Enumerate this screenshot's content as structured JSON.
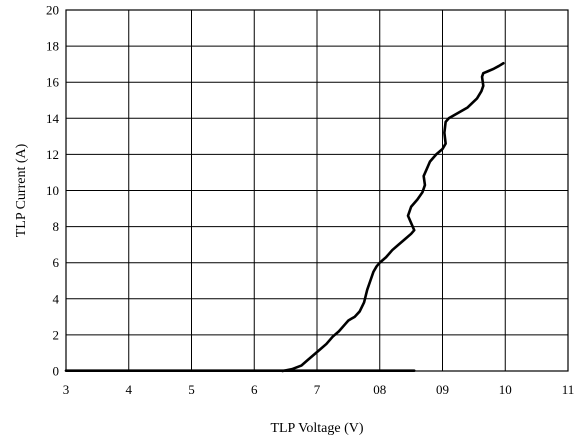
{
  "chart_data": {
    "type": "line",
    "title": "",
    "xlabel": "TLP Voltage (V)",
    "ylabel": "TLP Current (A)",
    "xlim": [
      3,
      11
    ],
    "ylim": [
      0,
      20
    ],
    "grid": true,
    "legend": "none",
    "x_ticks": [
      {
        "value": 3,
        "label": "3"
      },
      {
        "value": 4,
        "label": "4"
      },
      {
        "value": 5,
        "label": "5"
      },
      {
        "value": 6,
        "label": "6"
      },
      {
        "value": 7,
        "label": "7"
      },
      {
        "value": 8,
        "label": "08"
      },
      {
        "value": 9,
        "label": "09"
      },
      {
        "value": 10,
        "label": "10"
      },
      {
        "value": 11,
        "label": "11"
      }
    ],
    "y_ticks": [
      {
        "value": 0,
        "label": "0"
      },
      {
        "value": 2,
        "label": "2"
      },
      {
        "value": 4,
        "label": "4"
      },
      {
        "value": 6,
        "label": "6"
      },
      {
        "value": 8,
        "label": "8"
      },
      {
        "value": 10,
        "label": "10"
      },
      {
        "value": 12,
        "label": "12"
      },
      {
        "value": 14,
        "label": "14"
      },
      {
        "value": 16,
        "label": "16"
      },
      {
        "value": 18,
        "label": "18"
      },
      {
        "value": 20,
        "label": "20"
      }
    ],
    "series": [
      {
        "x": [
          8.55,
          6.0,
          5.0,
          4.0,
          3.0
        ],
        "y": [
          0.02,
          0.02,
          0.02,
          0.02,
          0.02
        ]
      },
      {
        "x": [
          6.45,
          6.6,
          6.75,
          6.85,
          6.95,
          7.05,
          7.15,
          7.25,
          7.35,
          7.45,
          7.5,
          7.55,
          7.6,
          7.68,
          7.75,
          7.8,
          7.85,
          7.9,
          7.95,
          8.0,
          8.1,
          8.2,
          8.3,
          8.4,
          8.5,
          8.55,
          8.5,
          8.45,
          8.5,
          8.6,
          8.68,
          8.72,
          8.7,
          8.75,
          8.8,
          8.9,
          9.0,
          9.05,
          9.03,
          9.05,
          9.1,
          9.25,
          9.4,
          9.55,
          9.62,
          9.65,
          9.63,
          9.65,
          9.72,
          9.82,
          9.9,
          9.97
        ],
        "y": [
          0.0,
          0.1,
          0.3,
          0.6,
          0.9,
          1.2,
          1.5,
          1.9,
          2.2,
          2.6,
          2.8,
          2.9,
          3.0,
          3.3,
          3.8,
          4.5,
          5.0,
          5.5,
          5.8,
          6.0,
          6.3,
          6.7,
          7.0,
          7.3,
          7.6,
          7.8,
          8.2,
          8.6,
          9.1,
          9.5,
          9.9,
          10.3,
          10.8,
          11.2,
          11.6,
          12.0,
          12.3,
          12.6,
          13.2,
          13.8,
          14.0,
          14.3,
          14.6,
          15.1,
          15.5,
          15.8,
          16.3,
          16.5,
          16.6,
          16.75,
          16.9,
          17.05
        ]
      }
    ]
  }
}
